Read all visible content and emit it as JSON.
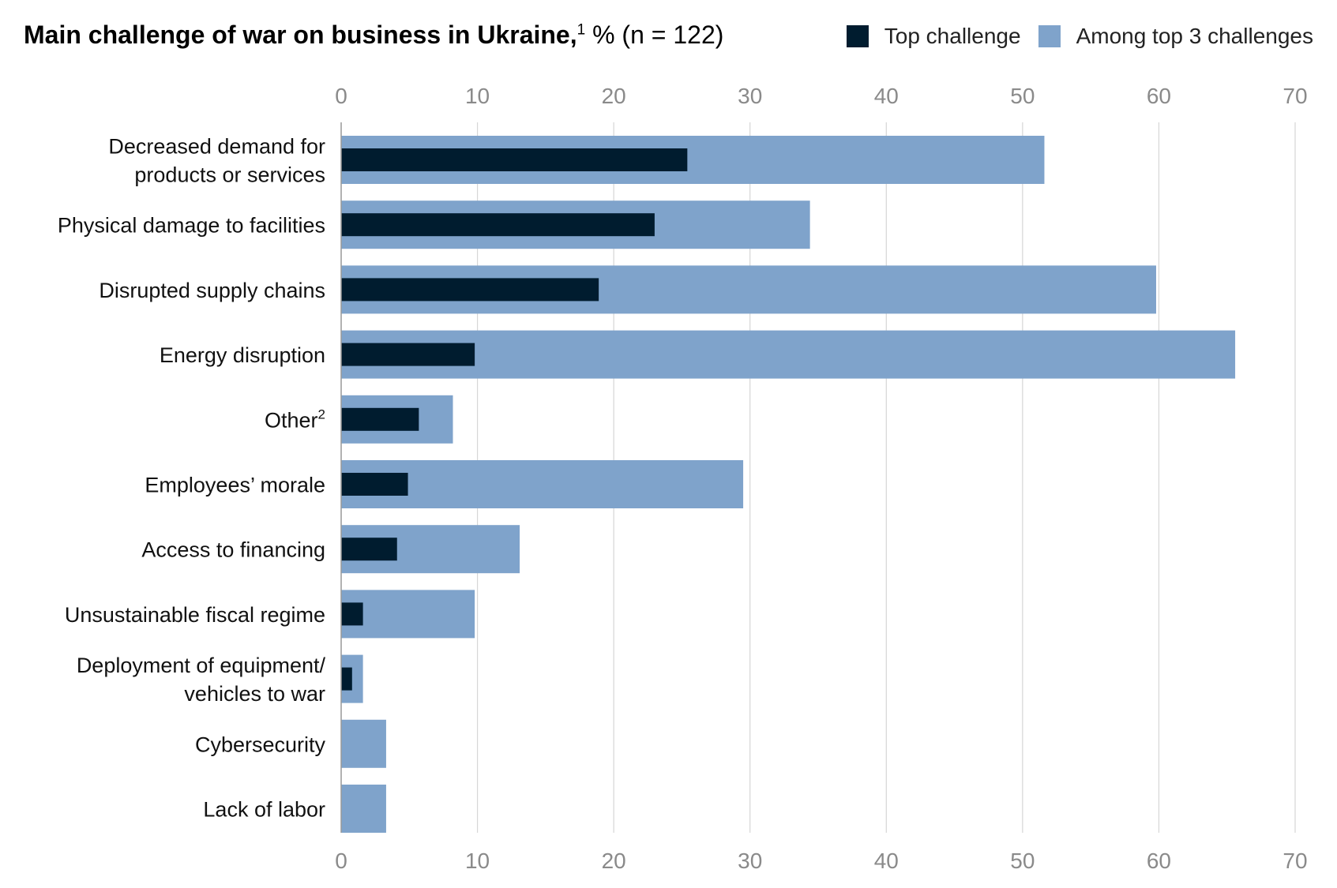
{
  "title": {
    "main": "Main challenge of war on business in Ukraine,",
    "footnote": "1",
    "suffix": " % (n = 122)"
  },
  "colors": {
    "top": "#001c2f",
    "top3": "#7fa3cb",
    "grid": "#d6d6d6",
    "axis": "#999999"
  },
  "chart_data": {
    "type": "bar",
    "orientation": "horizontal",
    "title": "Main challenge of war on business in Ukraine, % (n = 122)",
    "xlim": [
      0,
      70
    ],
    "xticks": [
      0,
      10,
      20,
      30,
      40,
      50,
      60,
      70
    ],
    "grid": true,
    "legend_position": "top-right",
    "categories": [
      {
        "lines": [
          "Decreased demand for",
          "products or services"
        ]
      },
      {
        "lines": [
          "Physical damage to facilities"
        ]
      },
      {
        "lines": [
          "Disrupted supply chains"
        ]
      },
      {
        "lines": [
          "Energy disruption"
        ]
      },
      {
        "lines": [
          "Other"
        ],
        "footnote": "2"
      },
      {
        "lines": [
          "Employees’ morale"
        ]
      },
      {
        "lines": [
          "Access to financing"
        ]
      },
      {
        "lines": [
          "Unsustainable fiscal regime"
        ]
      },
      {
        "lines": [
          "Deployment of equipment/",
          "vehicles to war"
        ]
      },
      {
        "lines": [
          "Cybersecurity"
        ]
      },
      {
        "lines": [
          "Lack of labor"
        ]
      }
    ],
    "series": [
      {
        "name": "Among top 3 challenges",
        "key": "top3",
        "values": [
          51.6,
          34.4,
          59.8,
          65.6,
          8.2,
          29.5,
          13.1,
          9.8,
          1.6,
          3.3,
          3.3
        ]
      },
      {
        "name": "Top challenge",
        "key": "top",
        "values": [
          25.4,
          23.0,
          18.9,
          9.8,
          5.7,
          4.9,
          4.1,
          1.6,
          0.8,
          0,
          0
        ]
      }
    ]
  }
}
